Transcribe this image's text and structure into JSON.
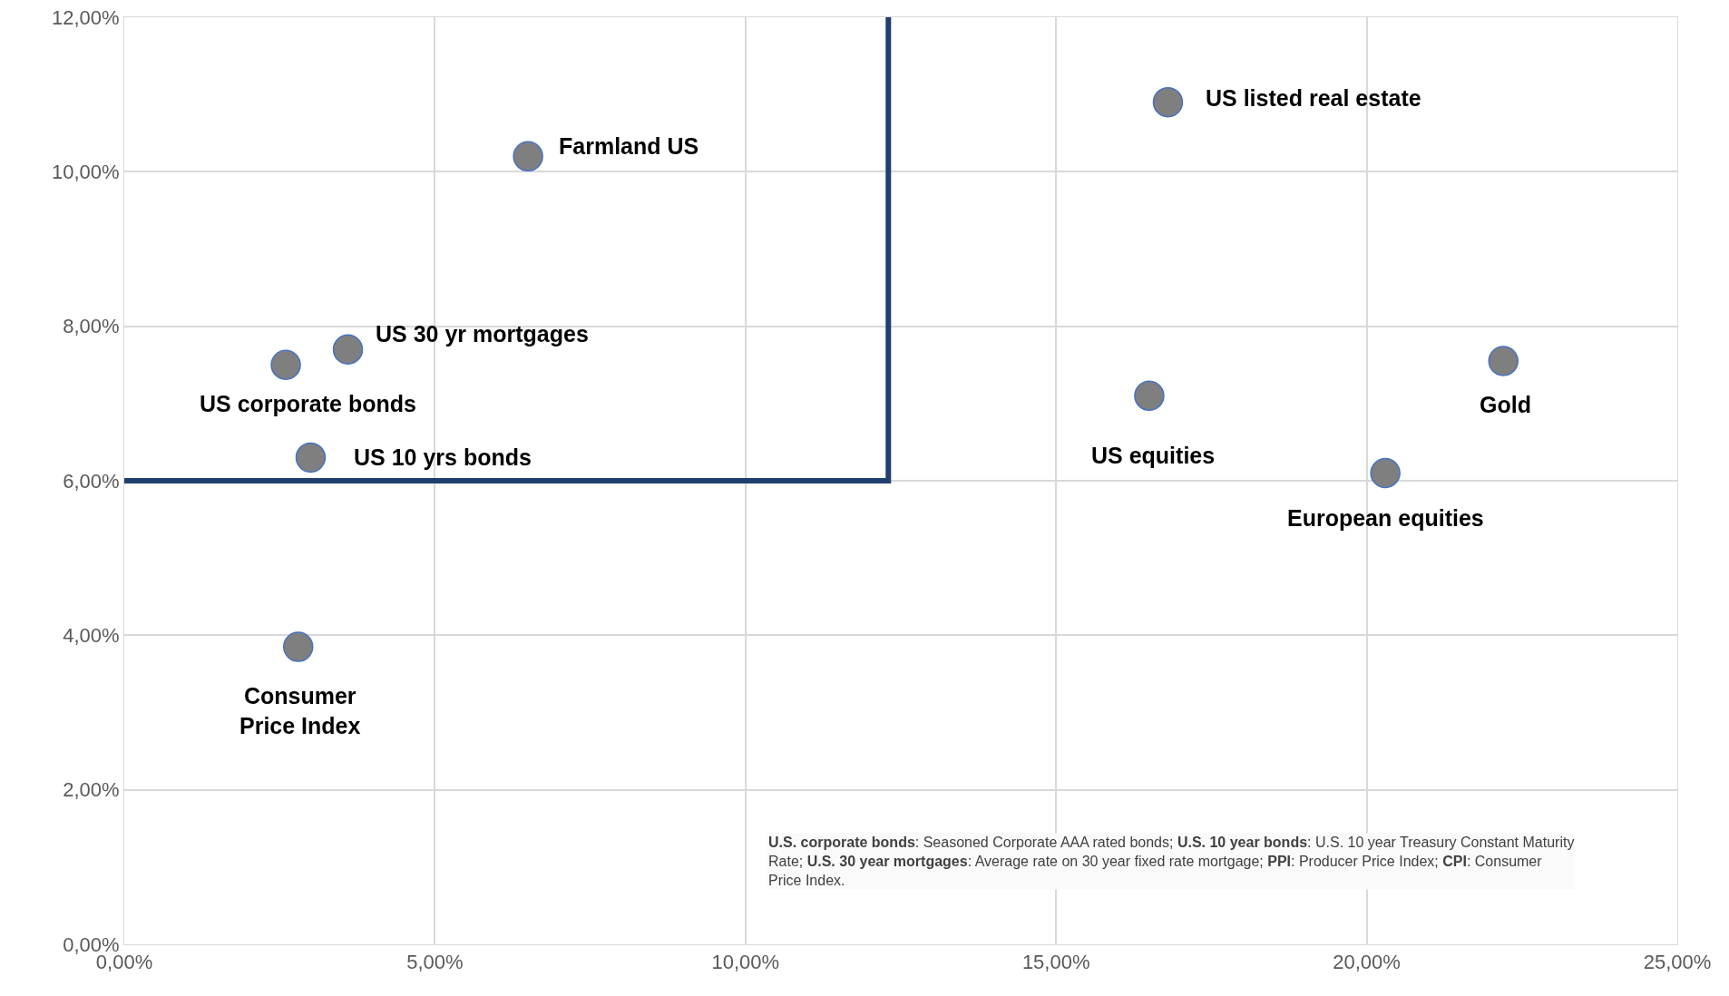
{
  "chart_data": {
    "type": "scatter",
    "xlim": [
      0,
      25
    ],
    "ylim": [
      0,
      12
    ],
    "xticks": [
      {
        "value": 0,
        "label": "0,00%"
      },
      {
        "value": 5,
        "label": "5,00%"
      },
      {
        "value": 10,
        "label": "10,00%"
      },
      {
        "value": 15,
        "label": "15,00%"
      },
      {
        "value": 20,
        "label": "20,00%"
      },
      {
        "value": 25,
        "label": "25,00%"
      }
    ],
    "yticks": [
      {
        "value": 0,
        "label": "0,00%"
      },
      {
        "value": 2,
        "label": "2,00%"
      },
      {
        "value": 4,
        "label": "4,00%"
      },
      {
        "value": 6,
        "label": "6,00%"
      },
      {
        "value": 8,
        "label": "8,00%"
      },
      {
        "value": 10,
        "label": "10,00%"
      },
      {
        "value": 12,
        "label": "12,00%"
      }
    ],
    "grid": true,
    "legend": false,
    "marker": "circle",
    "series": [
      {
        "name": "Farmland US",
        "color": "#7f7f7f",
        "x": [
          6.5
        ],
        "values": [
          10.2
        ]
      },
      {
        "name": "US listed real estate",
        "color": "#7f7f7f",
        "x": [
          16.8
        ],
        "values": [
          10.9
        ]
      },
      {
        "name": "US 30 yr mortgages",
        "color": "#7f7f7f",
        "x": [
          3.6
        ],
        "values": [
          7.7
        ]
      },
      {
        "name": "US corporate bonds",
        "color": "#7f7f7f",
        "x": [
          2.6
        ],
        "values": [
          7.5
        ]
      },
      {
        "name": "US 10 yrs bonds",
        "color": "#7f7f7f",
        "x": [
          3.0
        ],
        "values": [
          6.3
        ]
      },
      {
        "name": "Consumer Price Index",
        "color": "#7f7f7f",
        "x": [
          2.8
        ],
        "values": [
          3.85
        ]
      },
      {
        "name": "US equities",
        "color": "#7f7f7f",
        "x": [
          16.5
        ],
        "values": [
          7.1
        ]
      },
      {
        "name": "Gold",
        "color": "#7f7f7f",
        "x": [
          22.2
        ],
        "values": [
          7.55
        ]
      },
      {
        "name": "European equities",
        "color": "#7f7f7f",
        "x": [
          20.3
        ],
        "values": [
          6.1
        ]
      },
      {
        "type": "line",
        "color": "#1f3f6e",
        "x": [
          0,
          12.3,
          12.3
        ],
        "values": [
          6,
          6,
          12
        ],
        "line_style": "solid",
        "marker": "none"
      }
    ],
    "annotations": [
      "U.S. corporate bonds: Seasoned Corporate AAA rated bonds; U.S. 10 year bonds: U.S. 10 year Treasury Constant Maturity Rate; U.S. 30 year mortgages: Average rate on 30 year fixed rate mortgage; PPI: Producer Price Index; CPI: Consumer Price Index."
    ]
  }
}
